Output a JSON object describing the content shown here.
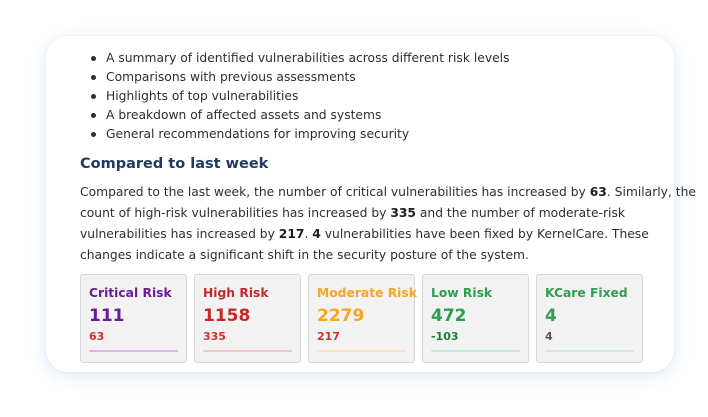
{
  "report": {
    "bullets": [
      "A summary of identified vulnerabilities across different risk levels",
      "Comparisons with previous assessments",
      "Highlights of top vulnerabilities",
      "A breakdown of affected assets and systems",
      "General recommendations for improving security"
    ],
    "section_title": "Compared to last week",
    "summary": {
      "l1_a": "Compared to the last week, the number of critical vulnerabilities has increased by ",
      "l1_b": "63",
      "l1_c": ". Similarly, the",
      "l2_a": "count of high-risk vulnerabilities has increased by ",
      "l2_b": "335",
      "l2_c": " and the number of moderate-risk",
      "l3_a": "vulnerabilities has increased by ",
      "l3_b": "217",
      "l3_c": ". ",
      "l3_d": "4",
      "l3_e": " vulnerabilities have been fixed by KernelCare. These",
      "l4": "changes indicate a significant shift in the security posture of the system."
    }
  },
  "tiles": [
    {
      "title": "Critical Risk",
      "value": "111",
      "delta": "63",
      "color": "#6a1b9a",
      "delta_color": "#d32f2f",
      "bar_color": "#d7b6ea"
    },
    {
      "title": "High Risk",
      "value": "1158",
      "delta": "335",
      "color": "#c62828",
      "delta_color": "#d32f2f",
      "bar_color": "#f5c6c6"
    },
    {
      "title": "Moderate Risk",
      "value": "2279",
      "delta": "217",
      "color": "#f5a623",
      "delta_color": "#d32f2f",
      "bar_color": "#fbe3c0"
    },
    {
      "title": "Low Risk",
      "value": "472",
      "delta": "-103",
      "color": "#2e9e4f",
      "delta_color": "#1b7a30",
      "bar_color": "#c6ebd2"
    },
    {
      "title": "KCare Fixed",
      "value": "4",
      "delta": "4",
      "color": "#2e9e4f",
      "delta_color": "#555555",
      "bar_color": "#cfe9d7"
    }
  ]
}
